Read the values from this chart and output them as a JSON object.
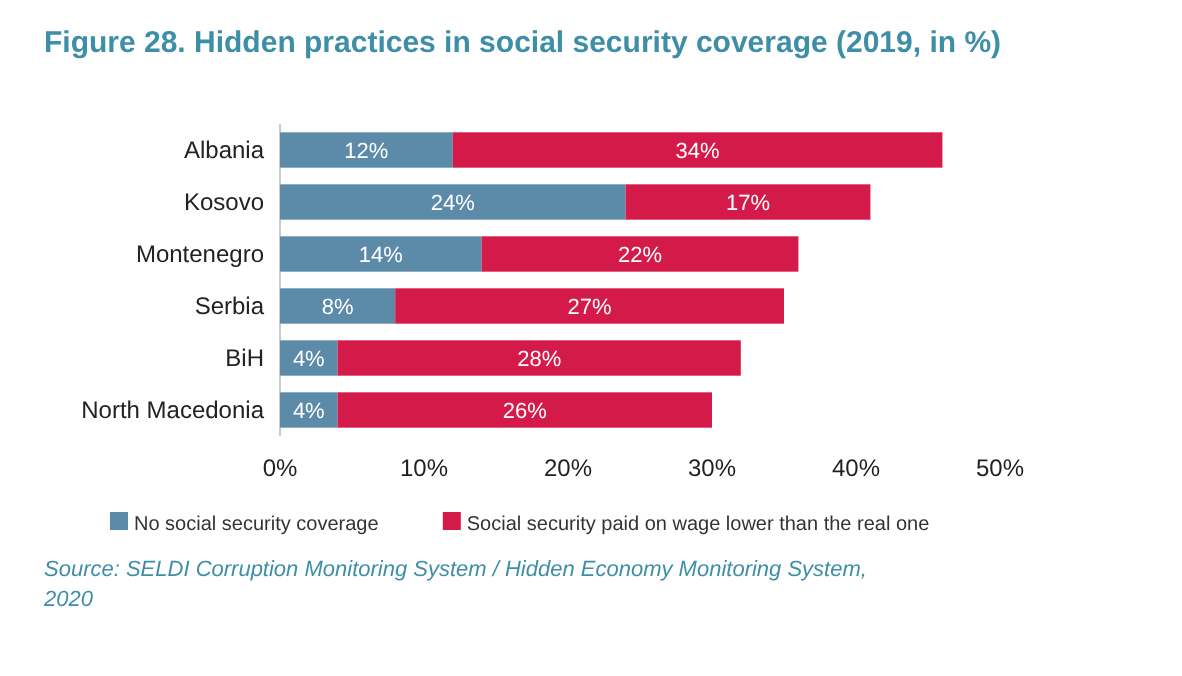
{
  "chart_data": {
    "type": "bar",
    "orientation": "horizontal",
    "stacked": true,
    "title": "Figure 28.   Hidden practices in social security coverage (2019, in %)",
    "categories": [
      "Albania",
      "Kosovo",
      "Montenegro",
      "Serbia",
      "BiH",
      "North Macedonia"
    ],
    "series": [
      {
        "name": "No social security coverage",
        "color": "#5b8ba8",
        "values": [
          12,
          24,
          14,
          8,
          4,
          4
        ],
        "value_labels": [
          "12%",
          "24%",
          "14%",
          "8%",
          "4%",
          "4%"
        ]
      },
      {
        "name": "Social security paid on wage lower than the real one",
        "color": "#d41a48",
        "values": [
          34,
          17,
          22,
          27,
          28,
          26
        ],
        "value_labels": [
          "34%",
          "17%",
          "22%",
          "27%",
          "28%",
          "26%"
        ]
      }
    ],
    "xlim": [
      0,
      50
    ],
    "xticks": [
      {
        "value": 0,
        "label": "0%"
      },
      {
        "value": 10,
        "label": "10%"
      },
      {
        "value": 20,
        "label": "20%"
      },
      {
        "value": 30,
        "label": "30%"
      },
      {
        "value": 40,
        "label": "40%"
      },
      {
        "value": 50,
        "label": "50%"
      }
    ],
    "legend": "bottom",
    "annotations": [
      "Source: SELDI Corruption Monitoring System / Hidden Economy Monitoring System, 2020"
    ]
  }
}
